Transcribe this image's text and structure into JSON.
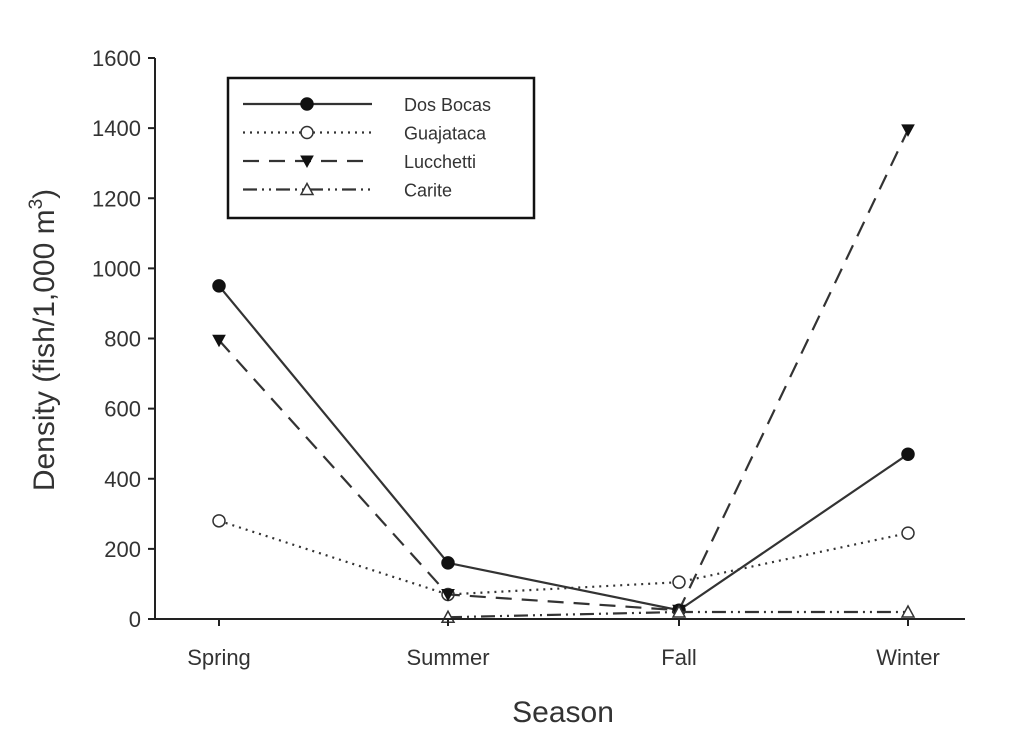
{
  "chart_data": {
    "type": "line",
    "title": "",
    "xlabel": "Season",
    "ylabel": "Density (fish/1,000 m",
    "ylabel_sup": "3",
    "ylabel_close": ")",
    "categories": [
      "Spring",
      "Summer",
      "Fall",
      "Winter"
    ],
    "ylim": [
      0,
      1600
    ],
    "yticks": [
      0,
      200,
      400,
      600,
      800,
      1000,
      1200,
      1400,
      1600
    ],
    "grid": false,
    "legend_position": "top-left",
    "series": [
      {
        "name": "Dos Bocas",
        "values": [
          950,
          160,
          25,
          470
        ],
        "line_style": "solid",
        "marker": "filled-circle"
      },
      {
        "name": "Guajataca",
        "values": [
          280,
          70,
          105,
          245
        ],
        "line_style": "dotted",
        "marker": "open-circle"
      },
      {
        "name": "Lucchetti",
        "values": [
          795,
          70,
          25,
          1395
        ],
        "line_style": "dashed",
        "marker": "filled-triangle-down"
      },
      {
        "name": "Carite",
        "values": [
          null,
          5,
          20,
          20
        ],
        "line_style": "dash-dot-dot",
        "marker": "open-triangle-up"
      }
    ],
    "colors": {
      "ink": "#333333",
      "axis": "#222222",
      "background": "#ffffff"
    }
  }
}
